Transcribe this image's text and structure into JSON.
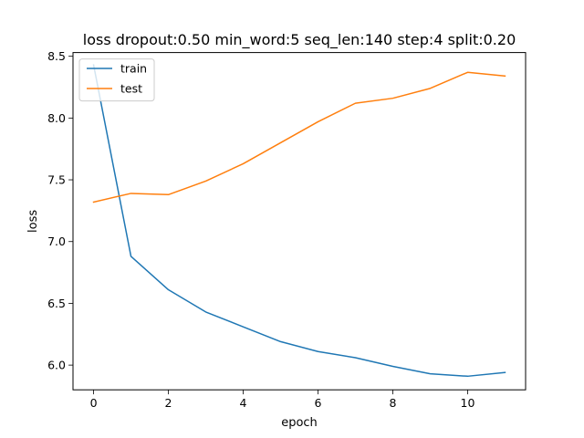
{
  "chart_data": {
    "type": "line",
    "title": "loss dropout:0.50 min_word:5 seq_len:140 step:4 split:0.20",
    "xlabel": "epoch",
    "ylabel": "loss",
    "xlim": [
      -0.55,
      11.55
    ],
    "ylim": [
      5.8,
      8.53
    ],
    "xticks": [
      0,
      2,
      4,
      6,
      8,
      10
    ],
    "xtick_labels": [
      "0",
      "2",
      "4",
      "6",
      "8",
      "10"
    ],
    "yticks": [
      6.0,
      6.5,
      7.0,
      7.5,
      8.0,
      8.5
    ],
    "ytick_labels": [
      "6.0",
      "6.5",
      "7.0",
      "7.5",
      "8.0",
      "8.5"
    ],
    "grid": false,
    "legend_position": "upper left",
    "x": [
      0,
      1,
      2,
      3,
      4,
      5,
      6,
      7,
      8,
      9,
      10,
      11
    ],
    "series": [
      {
        "name": "train",
        "color": "#1f77b4",
        "values": [
          8.43,
          6.88,
          6.61,
          6.43,
          6.31,
          6.19,
          6.11,
          6.06,
          5.99,
          5.93,
          5.91,
          5.94
        ]
      },
      {
        "name": "test",
        "color": "#ff7f0e",
        "values": [
          7.32,
          7.39,
          7.38,
          7.49,
          7.63,
          7.8,
          7.97,
          8.12,
          8.16,
          8.24,
          8.37,
          8.34
        ]
      }
    ]
  }
}
